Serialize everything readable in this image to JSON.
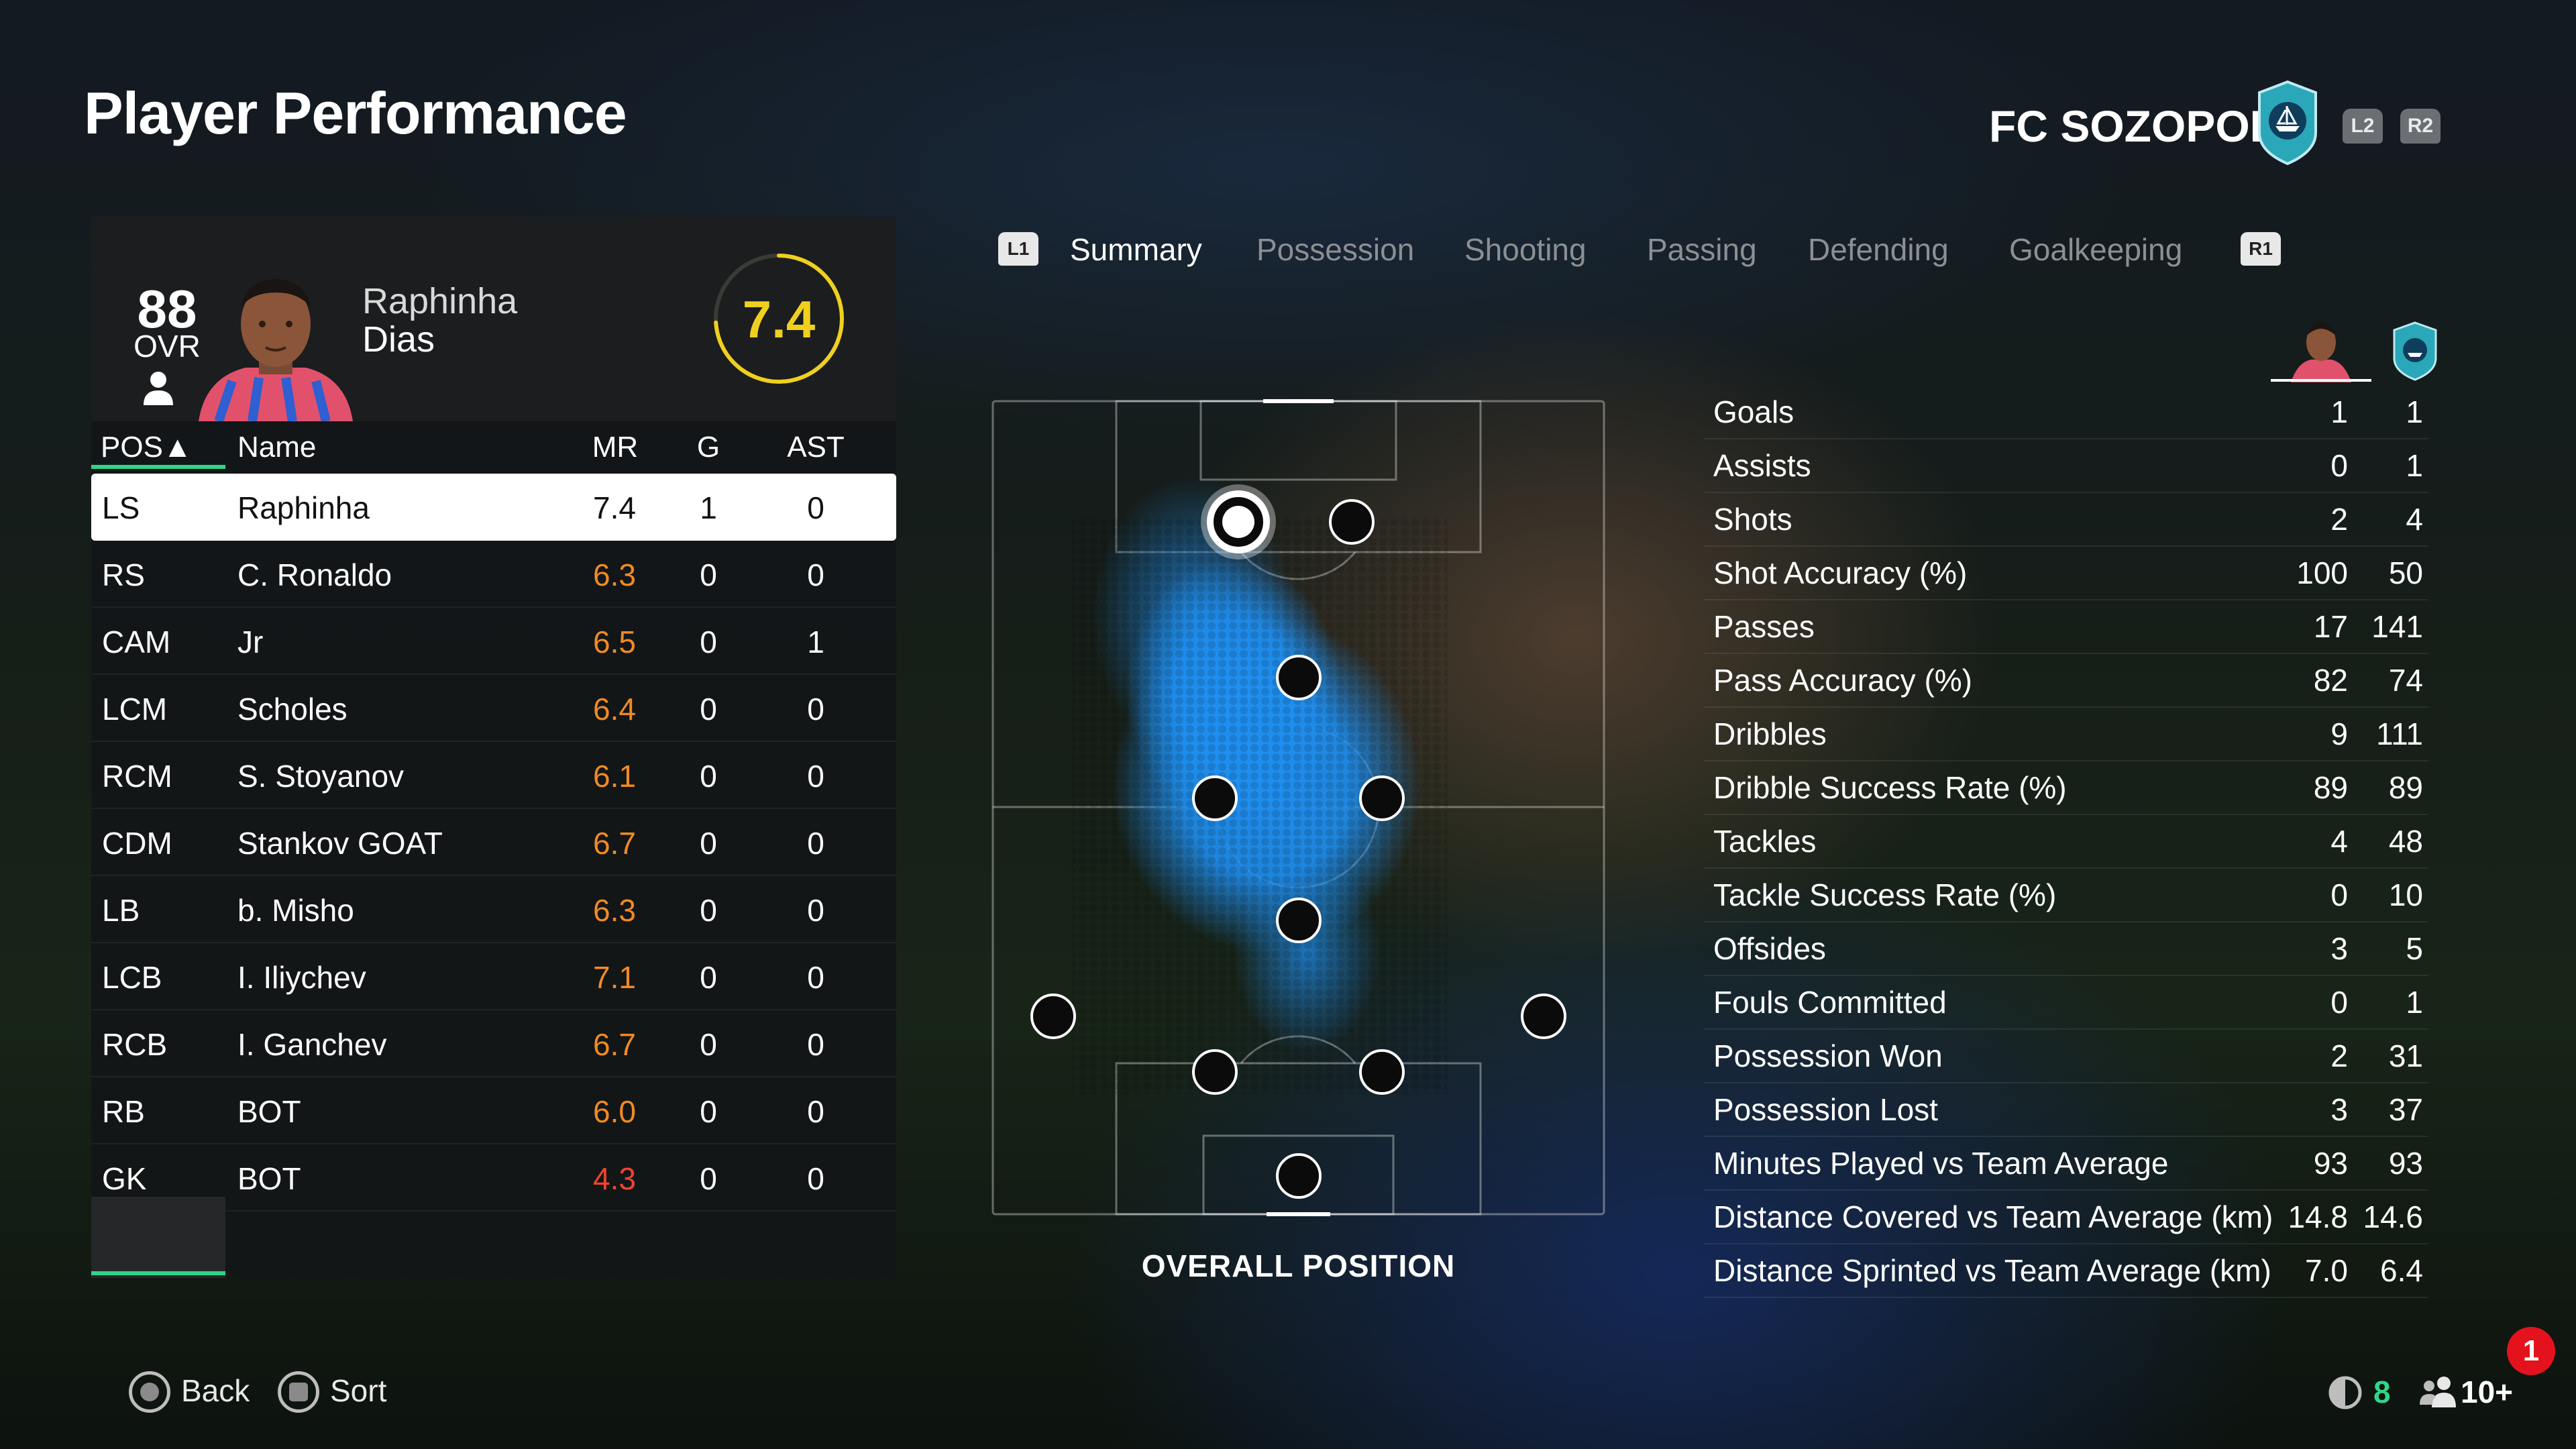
{
  "header": {
    "title": "Player Performance",
    "club_name": "FC SOZOPOL",
    "prev_button": "L2",
    "next_button": "R2"
  },
  "player": {
    "ovr": "88",
    "ovr_label": "OVR",
    "first_name": "Raphinha",
    "last_name": "Dias",
    "match_rating": "7.4",
    "match_rating_value": 7.4
  },
  "table": {
    "headers": {
      "pos": "POS▲",
      "name": "Name",
      "mr": "MR",
      "g": "G",
      "ast": "AST"
    },
    "rows": [
      {
        "pos": "LS",
        "name": "Raphinha",
        "mr": "7.4",
        "g": "1",
        "ast": "0",
        "mr_color": "#111111"
      },
      {
        "pos": "RS",
        "name": "C. Ronaldo",
        "mr": "6.3",
        "g": "0",
        "ast": "0",
        "mr_color": "#f08a24"
      },
      {
        "pos": "CAM",
        "name": "Jr",
        "mr": "6.5",
        "g": "0",
        "ast": "1",
        "mr_color": "#f08a24"
      },
      {
        "pos": "LCM",
        "name": "Scholes",
        "mr": "6.4",
        "g": "0",
        "ast": "0",
        "mr_color": "#f08a24"
      },
      {
        "pos": "RCM",
        "name": "S. Stoyanov",
        "mr": "6.1",
        "g": "0",
        "ast": "0",
        "mr_color": "#f08a24"
      },
      {
        "pos": "CDM",
        "name": "Stankov GOAT",
        "mr": "6.7",
        "g": "0",
        "ast": "0",
        "mr_color": "#f08a24"
      },
      {
        "pos": "LB",
        "name": "b. Misho",
        "mr": "6.3",
        "g": "0",
        "ast": "0",
        "mr_color": "#f08a24"
      },
      {
        "pos": "LCB",
        "name": "I. Iliychev",
        "mr": "7.1",
        "g": "0",
        "ast": "0",
        "mr_color": "#f08a24"
      },
      {
        "pos": "RCB",
        "name": "I. Ganchev",
        "mr": "6.7",
        "g": "0",
        "ast": "0",
        "mr_color": "#f08a24"
      },
      {
        "pos": "RB",
        "name": "BOT",
        "mr": "6.0",
        "g": "0",
        "ast": "0",
        "mr_color": "#f08a24"
      },
      {
        "pos": "GK",
        "name": "BOT",
        "mr": "4.3",
        "g": "0",
        "ast": "0",
        "mr_color": "#f0442f"
      }
    ]
  },
  "tabs": {
    "prev_button": "L1",
    "next_button": "R1",
    "items": [
      "Summary",
      "Possession",
      "Shooting",
      "Passing",
      "Defending",
      "Goalkeeping"
    ],
    "active": "Summary"
  },
  "pitch": {
    "caption": "OVERALL POSITION"
  },
  "stats": [
    {
      "label": "Goals",
      "player": "1",
      "team": "1"
    },
    {
      "label": "Assists",
      "player": "0",
      "team": "1"
    },
    {
      "label": "Shots",
      "player": "2",
      "team": "4"
    },
    {
      "label": "Shot Accuracy (%)",
      "player": "100",
      "team": "50"
    },
    {
      "label": "Passes",
      "player": "17",
      "team": "141"
    },
    {
      "label": "Pass Accuracy (%)",
      "player": "82",
      "team": "74"
    },
    {
      "label": "Dribbles",
      "player": "9",
      "team": "111"
    },
    {
      "label": "Dribble Success Rate (%)",
      "player": "89",
      "team": "89"
    },
    {
      "label": "Tackles",
      "player": "4",
      "team": "48"
    },
    {
      "label": "Tackle Success Rate (%)",
      "player": "0",
      "team": "10"
    },
    {
      "label": "Offsides",
      "player": "3",
      "team": "5"
    },
    {
      "label": "Fouls Committed",
      "player": "0",
      "team": "1"
    },
    {
      "label": "Possession Won",
      "player": "2",
      "team": "31"
    },
    {
      "label": "Possession Lost",
      "player": "3",
      "team": "37"
    },
    {
      "label": "Minutes Played vs Team Average",
      "player": "93",
      "team": "93"
    },
    {
      "label": "Distance Covered vs Team Average (km)",
      "player": "14.8",
      "team": "14.6"
    },
    {
      "label": "Distance Sprinted vs Team Average (km)",
      "player": "7.0",
      "team": "6.4"
    }
  ],
  "footer": {
    "back_label": "Back",
    "sort_label": "Sort",
    "notification_count": "1",
    "network_value": "8",
    "players_online": "10+"
  },
  "colors": {
    "accent_green": "#31d58a",
    "rating_yellow": "#f0d01e",
    "crest_teal": "#2aa7b8",
    "heat_blue": "#1f8ff0"
  }
}
